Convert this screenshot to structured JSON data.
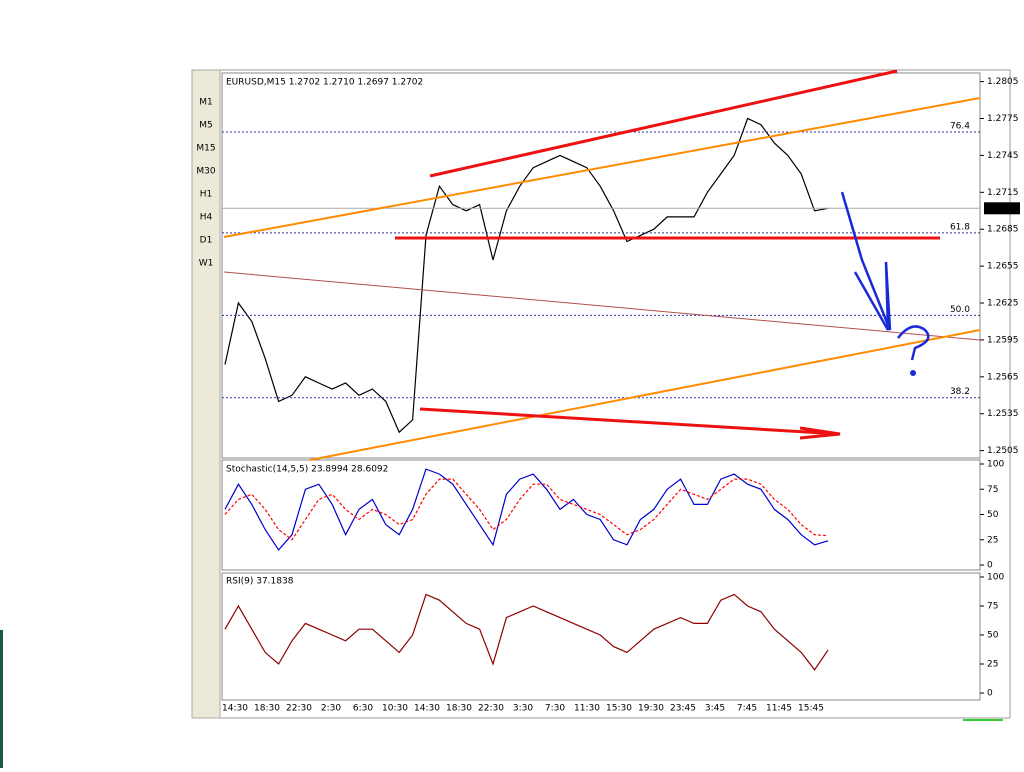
{
  "toolbar": {
    "timeframes": [
      "M1",
      "M5",
      "M15",
      "M30",
      "H1",
      "H4",
      "D1",
      "W1"
    ]
  },
  "time_labels": [
    "14:30",
    "18:30",
    "22:30",
    "2:30",
    "6:30",
    "10:30",
    "14:30",
    "18:30",
    "22:30",
    "3:30",
    "7:30",
    "11:30",
    "15:30",
    "19:30",
    "23:45",
    "3:45",
    "7:45",
    "11:45",
    "15:45"
  ],
  "chart_data": [
    {
      "type": "line",
      "title": "EURUSD,M15  1.2702  1.2710  1.2697  1.2702",
      "color": "#000000",
      "values": [
        1.2575,
        1.2625,
        1.261,
        1.258,
        1.2545,
        1.255,
        1.2565,
        1.256,
        1.2555,
        1.256,
        1.255,
        1.2555,
        1.2545,
        1.252,
        1.253,
        1.268,
        1.272,
        1.2705,
        1.27,
        1.2705,
        1.266,
        1.27,
        1.272,
        1.2735,
        1.274,
        1.2745,
        1.274,
        1.2735,
        1.272,
        1.27,
        1.2675,
        1.268,
        1.2685,
        1.2695,
        1.2695,
        1.2695,
        1.2715,
        1.273,
        1.2745,
        1.2775,
        1.277,
        1.2755,
        1.2745,
        1.273,
        1.27,
        1.2702
      ],
      "ylim": [
        1.2499,
        1.2812
      ],
      "yticks": [
        1.2805,
        1.2775,
        1.2745,
        1.2715,
        1.2685,
        1.2655,
        1.2625,
        1.2595,
        1.2565,
        1.2535,
        1.2505
      ],
      "current_price": 1.2702,
      "fib_levels": [
        {
          "label": "76.4",
          "price": 1.2764
        },
        {
          "label": "61.8",
          "price": 1.2682
        },
        {
          "label": "50.0",
          "price": 1.2615
        },
        {
          "label": "38.2",
          "price": 1.2548
        }
      ]
    },
    {
      "type": "line",
      "title": "Stochastic(14,5,5)  23.8994  28.6092",
      "series": [
        {
          "color": "#0000cc",
          "values": [
            55,
            80,
            60,
            35,
            15,
            30,
            75,
            80,
            60,
            30,
            55,
            65,
            40,
            30,
            55,
            95,
            90,
            80,
            60,
            40,
            20,
            70,
            85,
            90,
            75,
            55,
            65,
            50,
            45,
            25,
            20,
            45,
            55,
            75,
            85,
            60,
            60,
            85,
            90,
            80,
            75,
            55,
            45,
            30,
            20,
            24
          ]
        },
        {
          "color": "#ff0000",
          "values": [
            50,
            65,
            70,
            55,
            35,
            25,
            45,
            65,
            70,
            55,
            45,
            55,
            50,
            40,
            45,
            70,
            85,
            85,
            70,
            55,
            35,
            45,
            65,
            80,
            80,
            65,
            60,
            55,
            50,
            40,
            30,
            35,
            45,
            60,
            75,
            70,
            65,
            75,
            85,
            85,
            80,
            65,
            55,
            40,
            30,
            29
          ]
        }
      ],
      "ylim": [
        0,
        100
      ],
      "yticks": [
        100,
        75,
        50,
        25,
        0
      ]
    },
    {
      "type": "line",
      "title": "RSI(9)  37.1838",
      "series": [
        {
          "color": "#8b0000",
          "values": [
            55,
            75,
            55,
            35,
            25,
            45,
            60,
            55,
            50,
            45,
            55,
            55,
            45,
            35,
            50,
            85,
            80,
            70,
            60,
            55,
            25,
            65,
            70,
            75,
            70,
            65,
            60,
            55,
            50,
            40,
            35,
            45,
            55,
            60,
            65,
            60,
            60,
            80,
            85,
            75,
            70,
            55,
            45,
            35,
            20,
            37
          ]
        }
      ],
      "ylim": [
        0,
        100
      ],
      "yticks": [
        100,
        75,
        50,
        25,
        0
      ]
    }
  ]
}
